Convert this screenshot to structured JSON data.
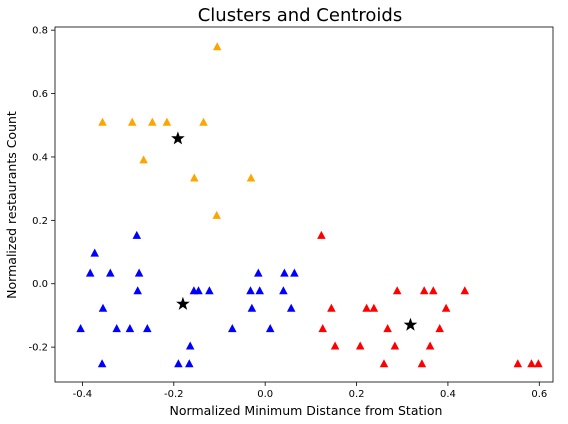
{
  "chart_data": {
    "type": "scatter",
    "title": "Clusters and Centroids",
    "xlabel": "Normalized Minimum Distance from Station",
    "ylabel": "Normalized restaurants Count",
    "xlim": [
      -0.46,
      0.63
    ],
    "ylim": [
      -0.31,
      0.81
    ],
    "xticks": [
      "-0.4",
      "-0.2",
      "0.0",
      "0.2",
      "0.4",
      "0.6"
    ],
    "xtick_values": [
      -0.4,
      -0.2,
      0.0,
      0.2,
      0.4,
      0.6
    ],
    "yticks": [
      "-0.2",
      "0.0",
      "0.2",
      "0.4",
      "0.6",
      "0.8"
    ],
    "ytick_values": [
      -0.2,
      0.0,
      0.2,
      0.4,
      0.6,
      0.8
    ],
    "grid": false,
    "series": [
      {
        "color": "#0000ff",
        "marker": "triangle",
        "points": [
          [
            -0.404,
            -0.143
          ],
          [
            -0.383,
            0.032
          ],
          [
            -0.373,
            0.095
          ],
          [
            -0.357,
            -0.254
          ],
          [
            -0.355,
            -0.079
          ],
          [
            -0.339,
            0.032
          ],
          [
            -0.325,
            -0.143
          ],
          [
            -0.296,
            -0.143
          ],
          [
            -0.281,
            0.151
          ],
          [
            -0.279,
            -0.024
          ],
          [
            -0.276,
            0.032
          ],
          [
            -0.258,
            -0.143
          ],
          [
            -0.19,
            -0.254
          ],
          [
            -0.166,
            -0.254
          ],
          [
            -0.164,
            -0.198
          ],
          [
            -0.156,
            -0.024
          ],
          [
            -0.146,
            -0.024
          ],
          [
            -0.122,
            -0.024
          ],
          [
            -0.072,
            -0.143
          ],
          [
            -0.032,
            -0.024
          ],
          [
            -0.029,
            -0.079
          ],
          [
            -0.015,
            0.032
          ],
          [
            -0.012,
            -0.024
          ],
          [
            0.011,
            -0.143
          ],
          [
            0.04,
            -0.024
          ],
          [
            0.042,
            0.032
          ],
          [
            0.057,
            -0.079
          ],
          [
            0.064,
            0.032
          ]
        ]
      },
      {
        "color": "#ffa500",
        "marker": "triangle",
        "points": [
          [
            -0.356,
            0.508
          ],
          [
            -0.291,
            0.508
          ],
          [
            -0.266,
            0.389
          ],
          [
            -0.247,
            0.508
          ],
          [
            -0.215,
            0.508
          ],
          [
            -0.155,
            0.332
          ],
          [
            -0.135,
            0.508
          ],
          [
            -0.106,
            0.214
          ],
          [
            -0.105,
            0.746
          ],
          [
            -0.031,
            0.332
          ]
        ]
      },
      {
        "color": "#ff0000",
        "marker": "triangle",
        "points": [
          [
            0.123,
            0.151
          ],
          [
            0.126,
            -0.143
          ],
          [
            0.145,
            -0.079
          ],
          [
            0.153,
            -0.198
          ],
          [
            0.208,
            -0.198
          ],
          [
            0.222,
            -0.079
          ],
          [
            0.238,
            -0.079
          ],
          [
            0.26,
            -0.254
          ],
          [
            0.268,
            -0.143
          ],
          [
            0.284,
            -0.198
          ],
          [
            0.289,
            -0.024
          ],
          [
            0.343,
            -0.254
          ],
          [
            0.348,
            -0.024
          ],
          [
            0.361,
            -0.198
          ],
          [
            0.368,
            -0.024
          ],
          [
            0.382,
            -0.143
          ],
          [
            0.396,
            -0.079
          ],
          [
            0.437,
            -0.024
          ],
          [
            0.553,
            -0.254
          ],
          [
            0.583,
            -0.254
          ],
          [
            0.598,
            -0.254
          ]
        ]
      }
    ],
    "centroids": {
      "color": "#000000",
      "marker": "star",
      "points": [
        [
          -0.191,
          0.458
        ],
        [
          -0.18,
          -0.064
        ],
        [
          0.318,
          -0.13
        ]
      ]
    }
  }
}
